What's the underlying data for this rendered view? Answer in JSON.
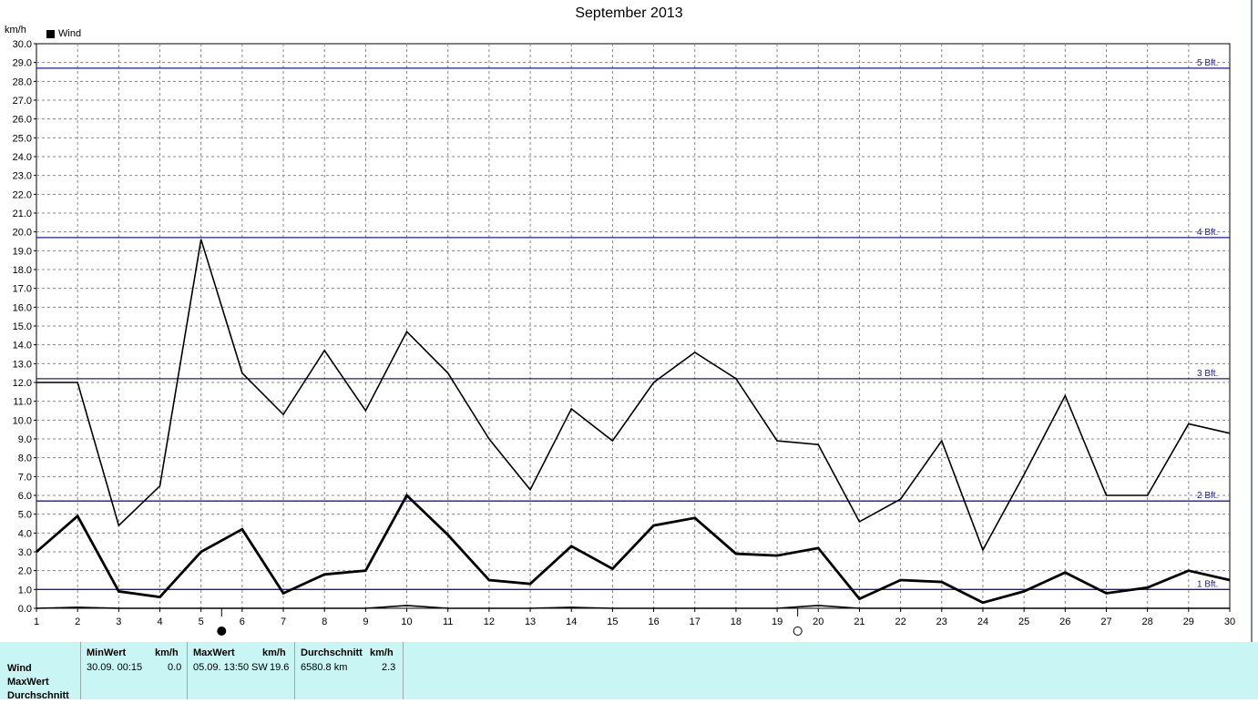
{
  "chart_data": {
    "type": "line",
    "title": "September 2013",
    "ylabel": "km/h",
    "legend": [
      "Wind"
    ],
    "legend_placement": "top-left",
    "grid": true,
    "x": [
      1,
      2,
      3,
      4,
      5,
      6,
      7,
      8,
      9,
      10,
      11,
      12,
      13,
      14,
      15,
      16,
      17,
      18,
      19,
      20,
      21,
      22,
      23,
      24,
      25,
      26,
      27,
      28,
      29,
      30
    ],
    "xlim": [
      1,
      30
    ],
    "ylim": [
      0,
      30
    ],
    "yticks": [
      "0.0",
      "1.0",
      "2.0",
      "3.0",
      "4.0",
      "5.0",
      "6.0",
      "7.0",
      "8.0",
      "9.0",
      "10.0",
      "11.0",
      "12.0",
      "13.0",
      "14.0",
      "15.0",
      "16.0",
      "17.0",
      "18.0",
      "19.0",
      "20.0",
      "21.0",
      "22.0",
      "23.0",
      "24.0",
      "25.0",
      "26.0",
      "27.0",
      "28.0",
      "29.0",
      "30.0"
    ],
    "series": [
      {
        "name": "Wind",
        "role": "max",
        "values": [
          12.0,
          12.0,
          4.4,
          6.5,
          19.6,
          12.5,
          10.3,
          13.7,
          10.5,
          14.7,
          12.5,
          9.0,
          6.3,
          10.6,
          8.9,
          12.0,
          13.6,
          12.2,
          8.9,
          8.7,
          4.6,
          5.8,
          8.9,
          3.1,
          7.1,
          11.3,
          6.0,
          6.0,
          9.8,
          9.3
        ]
      },
      {
        "name": "Wind",
        "role": "average",
        "values": [
          3.0,
          4.9,
          0.9,
          0.6,
          3.0,
          4.2,
          0.8,
          1.8,
          2.0,
          6.0,
          3.9,
          1.5,
          1.3,
          3.3,
          2.1,
          4.4,
          4.8,
          2.9,
          2.8,
          3.2,
          0.5,
          1.5,
          1.4,
          0.3,
          0.9,
          1.9,
          0.8,
          1.1,
          2.0,
          1.5
        ]
      },
      {
        "name": "Wind",
        "role": "min",
        "values": [
          0,
          0.05,
          0,
          0,
          0,
          0,
          0,
          0,
          0,
          0.15,
          0,
          0,
          0,
          0.05,
          0,
          0,
          0,
          0,
          0,
          0.15,
          0,
          0,
          0,
          0,
          0,
          0,
          0,
          0,
          0,
          0
        ]
      }
    ],
    "reference_lines": [
      {
        "label": "1 Bft.",
        "value": 1.0
      },
      {
        "label": "2 Bft.",
        "value": 5.7
      },
      {
        "label": "3 Bft.",
        "value": 12.2
      },
      {
        "label": "4 Bft.",
        "value": 19.7
      },
      {
        "label": "5 Bft.",
        "value": 28.7
      }
    ],
    "moon_markers": [
      {
        "day": 5.5,
        "phase": "new"
      },
      {
        "day": 19.5,
        "phase": "full"
      }
    ],
    "colors": {
      "series": "#000000",
      "reference": "#1a1aa0",
      "grid": "#888888",
      "stats_bg": "#c9f5f5"
    }
  },
  "stats": {
    "row_labels": [
      "Wind",
      "MaxWert",
      "Durchschnitt"
    ],
    "min": {
      "header": "MinWert",
      "unit": "km/h",
      "date": "30.09.  00:15",
      "value": "0.0"
    },
    "max": {
      "header": "MaxWert",
      "unit": "km/h",
      "date": "05.09.  13:50",
      "dir": "SW",
      "value": "19.6"
    },
    "avg": {
      "header": "Durchschnitt",
      "unit": "km/h",
      "distance": "6580.8 km",
      "value": "2.3"
    }
  }
}
